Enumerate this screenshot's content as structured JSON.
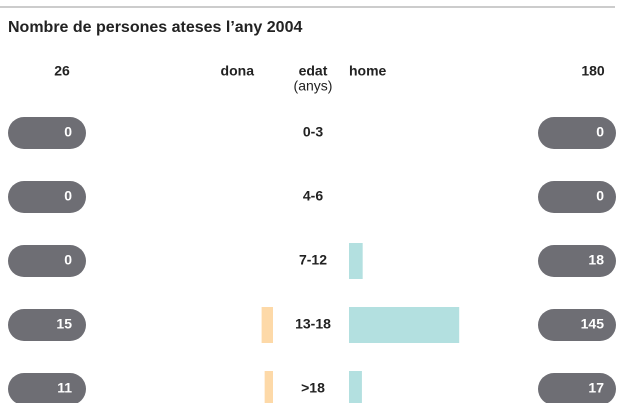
{
  "chart_data": {
    "type": "pyramid",
    "title": "Nombre de persones ateses l’any 2004",
    "left_header": "dona",
    "center_header": "edat",
    "center_subheader": "(anys)",
    "right_header": "home",
    "categories": [
      "0-3",
      "4-6",
      "7-12",
      "13-18",
      ">18"
    ],
    "series": [
      {
        "name": "dona",
        "color": "#fdd9a8",
        "total": 26,
        "values": [
          0,
          0,
          0,
          15,
          11
        ]
      },
      {
        "name": "home",
        "color": "#b3e0e0",
        "total": 180,
        "values": [
          0,
          0,
          18,
          145,
          17
        ]
      }
    ],
    "pill_color": "#6e6e74"
  }
}
